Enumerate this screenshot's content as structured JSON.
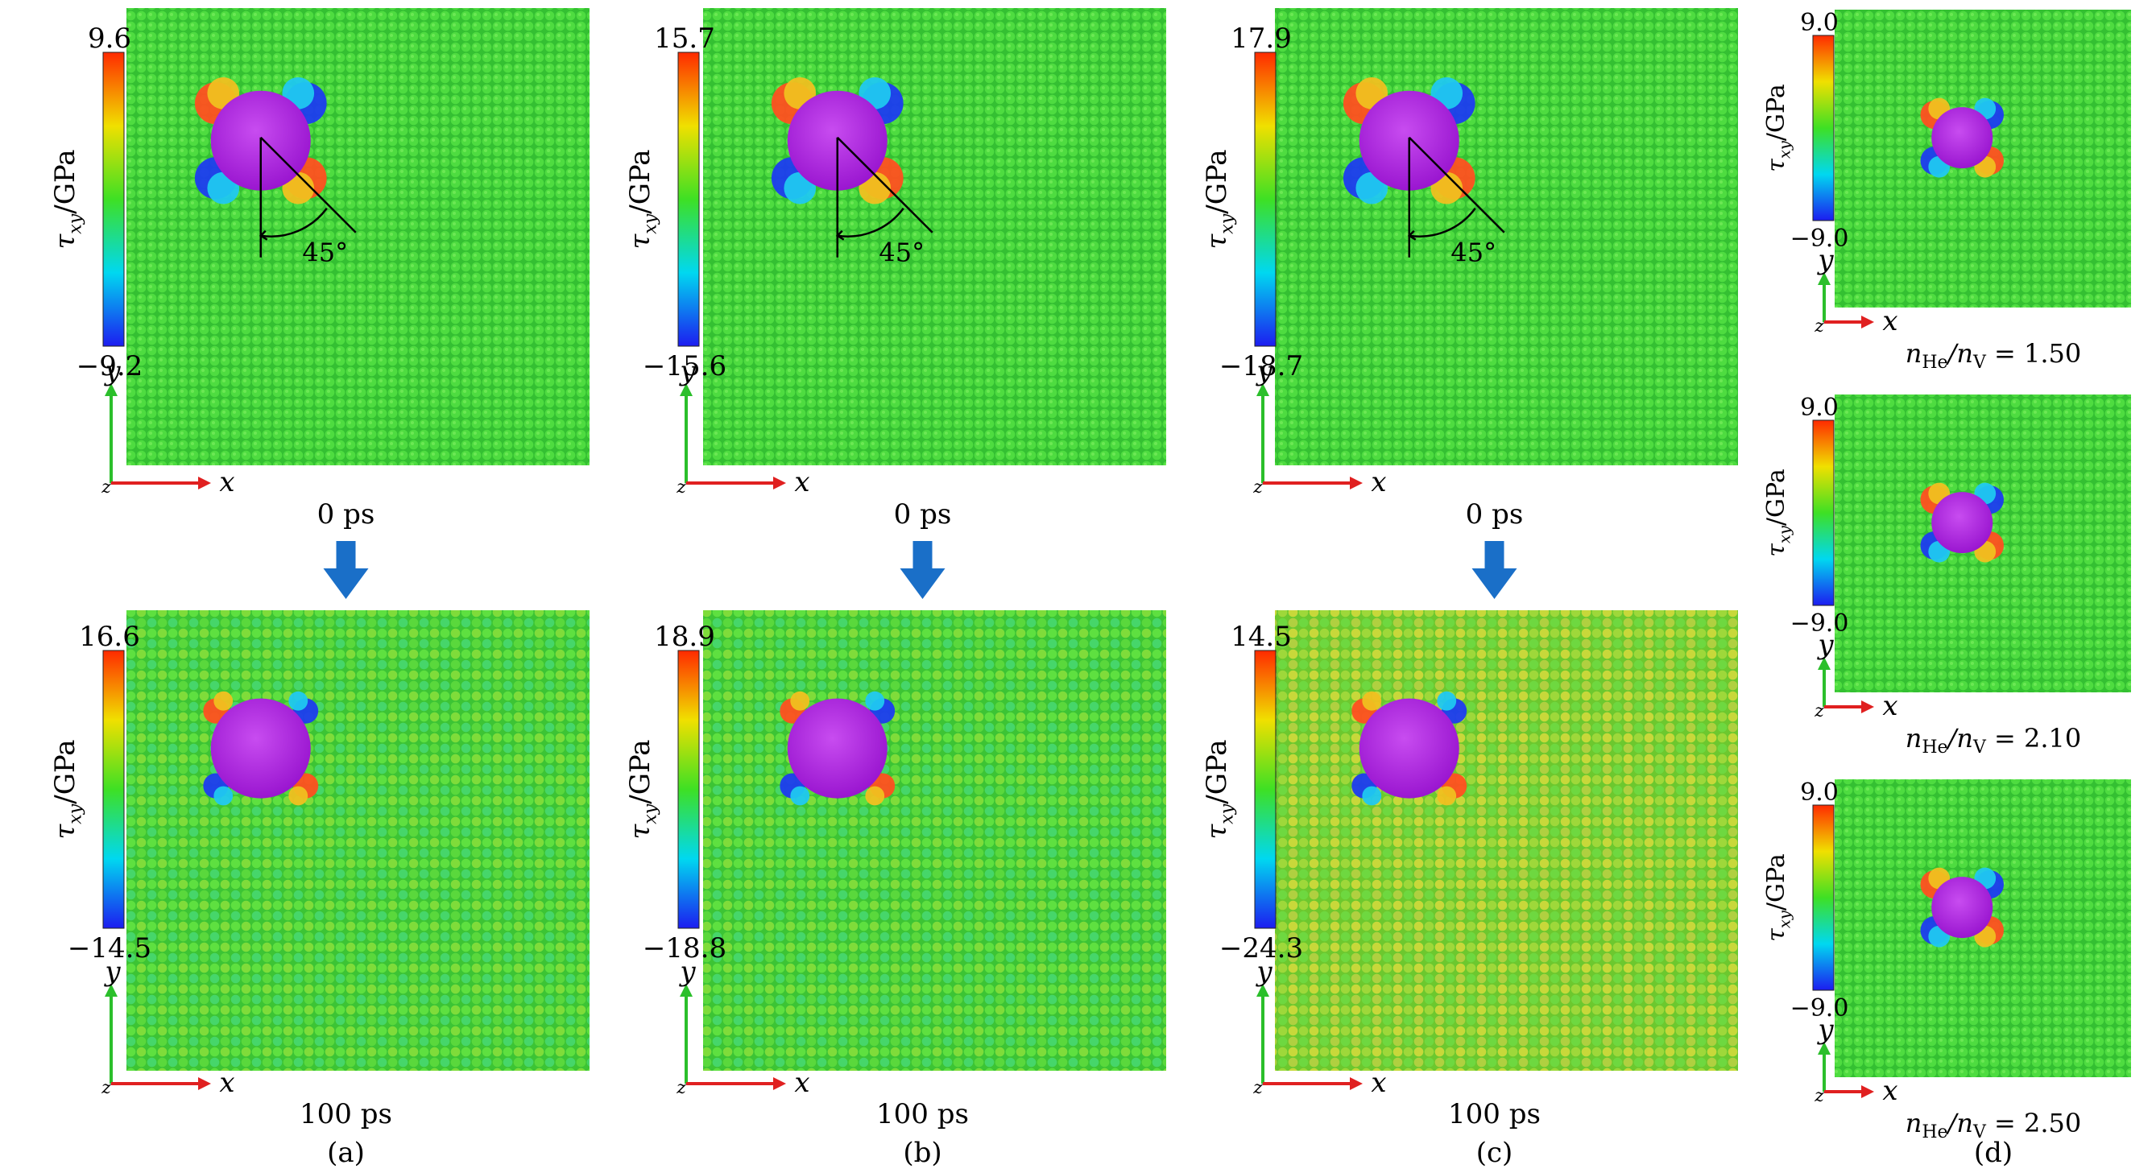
{
  "colormap": [
    "#1c1cf0",
    "#00d8f0",
    "#3ee024",
    "#f0e000",
    "#ff2a00"
  ],
  "atom_color": "#3ed13a",
  "void_color": "#b31fe0",
  "axes_labels": {
    "x": "x",
    "y": "y",
    "z": "z"
  },
  "colorbar_title": "τxy/GPa",
  "arrow_color": "#1a6fc8",
  "angle_label": "45°",
  "panels": [
    {
      "letter": "(a)",
      "top": {
        "max": "9.6",
        "min": "−9.2",
        "time": "0 ps"
      },
      "bottom": {
        "max": "16.6",
        "min": "−14.5",
        "time": "100 ps"
      }
    },
    {
      "letter": "(b)",
      "top": {
        "max": "15.7",
        "min": "−15.6",
        "time": "0 ps"
      },
      "bottom": {
        "max": "18.9",
        "min": "−18.8",
        "time": "100 ps"
      }
    },
    {
      "letter": "(c)",
      "top": {
        "max": "17.9",
        "min": "−18.7",
        "time": "0 ps"
      },
      "bottom": {
        "max": "14.5",
        "min": "−24.3",
        "time": "100 ps"
      }
    }
  ],
  "panel_d": {
    "letter": "(d)",
    "ratio_label": "nHe/nV",
    "maps": [
      {
        "max": "9.0",
        "min": "−9.0",
        "ratio": "= 1.50"
      },
      {
        "max": "9.0",
        "min": "−9.0",
        "ratio": "= 2.10"
      },
      {
        "max": "9.0",
        "min": "−9.0",
        "ratio": "= 2.50"
      }
    ]
  }
}
